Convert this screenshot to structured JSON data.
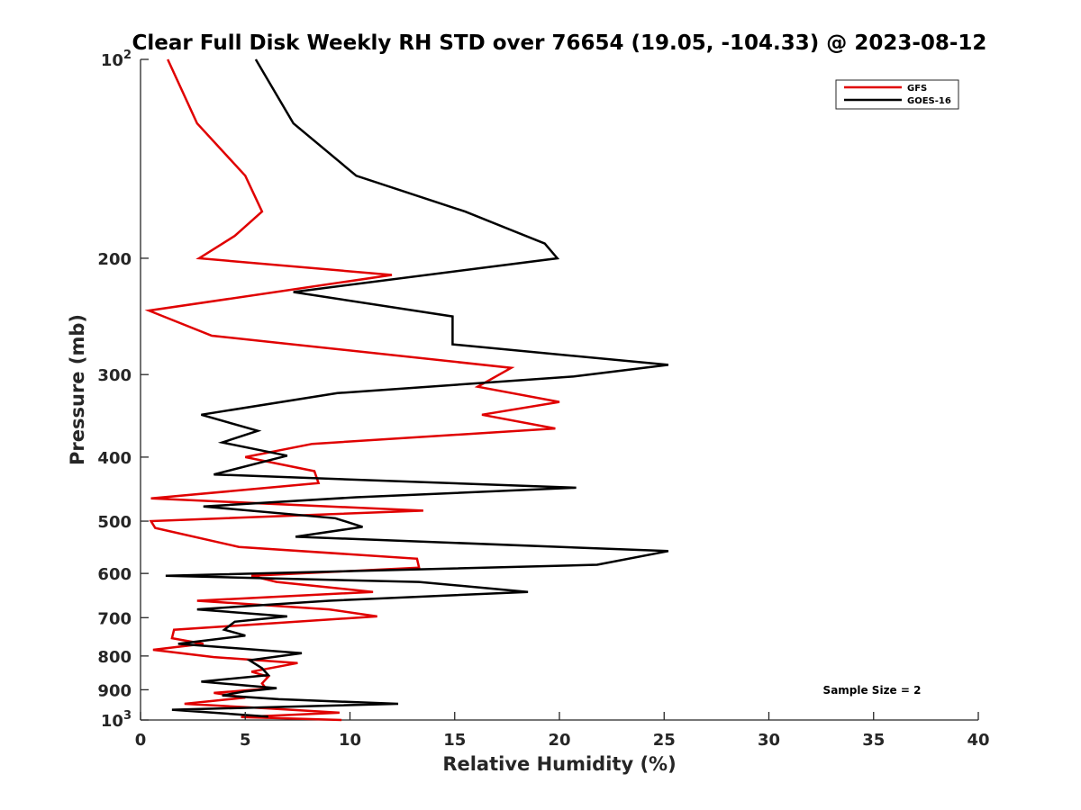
{
  "chart_data": {
    "type": "line",
    "title": "Clear Full Disk Weekly RH STD over 76654 (19.05, -104.33) @ 2023-08-12",
    "xlabel": "Relative Humidity (%)",
    "ylabel": "Pressure (mb)",
    "xlim": [
      0,
      40
    ],
    "ylim": [
      100,
      1000
    ],
    "yscale": "log",
    "yreversed": true,
    "xticks": [
      0,
      5,
      10,
      15,
      20,
      25,
      30,
      35,
      40
    ],
    "xtick_labels": [
      "0",
      "5",
      "10",
      "15",
      "20",
      "25",
      "30",
      "35",
      "40"
    ],
    "yticks": [
      {
        "value": 100,
        "label": "10",
        "sup": "2"
      },
      {
        "value": 200,
        "label": "200"
      },
      {
        "value": 300,
        "label": "300"
      },
      {
        "value": 400,
        "label": "400"
      },
      {
        "value": 500,
        "label": "500"
      },
      {
        "value": 600,
        "label": "600"
      },
      {
        "value": 700,
        "label": "700"
      },
      {
        "value": 800,
        "label": "800"
      },
      {
        "value": 900,
        "label": "900"
      },
      {
        "value": 1000,
        "label": "10",
        "sup": "3"
      }
    ],
    "grid": false,
    "legend_position": "top-right",
    "series": [
      {
        "name": "GFS",
        "color": "#e00000",
        "points": [
          [
            1.3,
            100
          ],
          [
            2.7,
            125
          ],
          [
            5.0,
            150
          ],
          [
            5.8,
            170
          ],
          [
            4.5,
            185
          ],
          [
            2.8,
            200
          ],
          [
            12.0,
            212
          ],
          [
            0.4,
            240
          ],
          [
            3.4,
            262
          ],
          [
            17.7,
            293
          ],
          [
            16.1,
            313
          ],
          [
            20.0,
            330
          ],
          [
            16.3,
            345
          ],
          [
            19.8,
            362
          ],
          [
            8.2,
            382
          ],
          [
            5.0,
            400
          ],
          [
            8.3,
            420
          ],
          [
            8.5,
            438
          ],
          [
            0.5,
            462
          ],
          [
            13.5,
            482
          ],
          [
            0.5,
            500
          ],
          [
            0.7,
            512
          ],
          [
            4.7,
            547
          ],
          [
            13.2,
            570
          ],
          [
            13.3,
            588
          ],
          [
            5.3,
            605
          ],
          [
            6.5,
            618
          ],
          [
            11.1,
            640
          ],
          [
            2.7,
            660
          ],
          [
            9.0,
            680
          ],
          [
            11.3,
            697
          ],
          [
            1.6,
            730
          ],
          [
            1.5,
            752
          ],
          [
            3.0,
            767
          ],
          [
            0.6,
            783
          ],
          [
            3.5,
            803
          ],
          [
            7.5,
            820
          ],
          [
            5.3,
            845
          ],
          [
            6.1,
            860
          ],
          [
            5.8,
            880
          ],
          [
            6.0,
            897
          ],
          [
            3.5,
            910
          ],
          [
            5.0,
            925
          ],
          [
            2.1,
            945
          ],
          [
            6.0,
            960
          ],
          [
            9.5,
            975
          ],
          [
            4.8,
            990
          ],
          [
            9.6,
            1000
          ]
        ]
      },
      {
        "name": "GOES-16",
        "color": "#000000",
        "points": [
          [
            5.5,
            100
          ],
          [
            7.3,
            125
          ],
          [
            10.3,
            150
          ],
          [
            15.5,
            170
          ],
          [
            19.3,
            190
          ],
          [
            19.9,
            200
          ],
          [
            7.3,
            225
          ],
          [
            14.9,
            245
          ],
          [
            14.9,
            270
          ],
          [
            25.2,
            290
          ],
          [
            20.7,
            302
          ],
          [
            9.4,
            320
          ],
          [
            2.9,
            345
          ],
          [
            5.6,
            365
          ],
          [
            3.9,
            380
          ],
          [
            7.0,
            398
          ],
          [
            3.5,
            425
          ],
          [
            20.8,
            445
          ],
          [
            10.3,
            460
          ],
          [
            3.0,
            475
          ],
          [
            9.3,
            495
          ],
          [
            10.6,
            510
          ],
          [
            7.4,
            528
          ],
          [
            25.2,
            555
          ],
          [
            21.8,
            582
          ],
          [
            1.2,
            605
          ],
          [
            13.3,
            618
          ],
          [
            18.5,
            640
          ],
          [
            9.0,
            660
          ],
          [
            2.7,
            680
          ],
          [
            7.0,
            697
          ],
          [
            4.5,
            710
          ],
          [
            4.0,
            730
          ],
          [
            5.0,
            745
          ],
          [
            1.8,
            767
          ],
          [
            7.7,
            792
          ],
          [
            5.2,
            812
          ],
          [
            5.8,
            835
          ],
          [
            6.1,
            855
          ],
          [
            2.9,
            875
          ],
          [
            6.5,
            895
          ],
          [
            5.0,
            905
          ],
          [
            3.9,
            918
          ],
          [
            6.6,
            930
          ],
          [
            12.3,
            945
          ],
          [
            1.5,
            965
          ],
          [
            6.1,
            988
          ]
        ]
      }
    ],
    "annotation": "Sample Size = 2"
  }
}
